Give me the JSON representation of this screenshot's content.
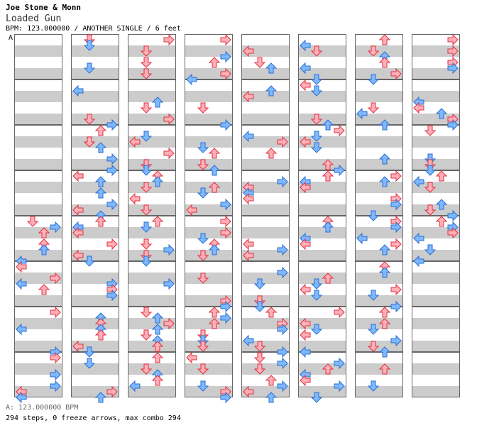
{
  "header": {
    "artist": "Joe Stone & Monn",
    "title": "Loaded Gun",
    "meta": "BPM: 123.000000 / ANOTHER SINGLE / 6 feet",
    "section_marker": "A"
  },
  "footer": {
    "bpm_line": "A: 123.000000 BPM",
    "stats": "294 steps, 0 freeze arrows, max combo 294"
  },
  "colors": {
    "stripe_gray": "#cccccc",
    "stripe_white": "#ffffff",
    "border": "#666666",
    "quarter_arrow_fill": "#ffb0b8",
    "quarter_arrow_stroke": "#e03040",
    "eighth_arrow_fill": "#7fb8ff",
    "eighth_arrow_stroke": "#2a6fd0"
  },
  "chart_data": {
    "type": "step-chart",
    "mode": "ANOTHER SINGLE",
    "bpm": 123,
    "lanes": [
      "left",
      "down",
      "up",
      "right"
    ],
    "measures": 64,
    "measures_per_column": 8,
    "columns": 8,
    "total_steps": 294,
    "freeze_arrows": 0,
    "max_combo": 294
  }
}
